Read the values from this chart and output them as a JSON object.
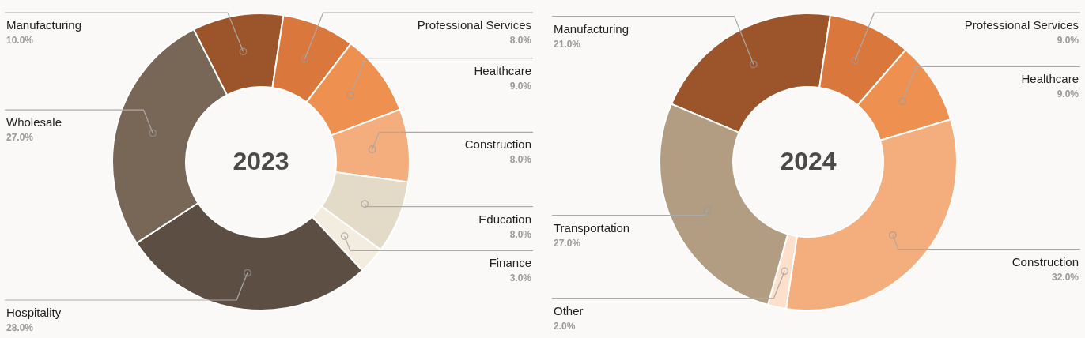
{
  "chart_data": [
    {
      "type": "donut",
      "title": "2023",
      "categories": [
        "Manufacturing",
        "Professional Services",
        "Healthcare",
        "Construction",
        "Education",
        "Finance",
        "Hospitality",
        "Wholesale"
      ],
      "values": [
        10.0,
        8.0,
        9.0,
        8.0,
        8.0,
        3.0,
        28.0,
        27.0
      ],
      "value_labels": [
        "10.0%",
        "8.0%",
        "9.0%",
        "8.0%",
        "8.0%",
        "3.0%",
        "28.0%",
        "27.0%"
      ],
      "colors": [
        "#9c552b",
        "#d9773d",
        "#ee9150",
        "#f4ad7c",
        "#e3dac8",
        "#f3ede0",
        "#5c4e42",
        "#786656"
      ],
      "legend": false
    },
    {
      "type": "donut",
      "title": "2024",
      "categories": [
        "Manufacturing",
        "Professional Services",
        "Healthcare",
        "Construction",
        "Other",
        "Transportation"
      ],
      "values": [
        21.0,
        9.0,
        9.0,
        32.0,
        2.0,
        27.0
      ],
      "value_labels": [
        "21.0%",
        "9.0%",
        "9.0%",
        "32.0%",
        "2.0%",
        "27.0%"
      ],
      "colors": [
        "#9c552b",
        "#d9773d",
        "#ee9150",
        "#f4ad7c",
        "#fde0cc",
        "#b29c82"
      ],
      "legend": false
    }
  ]
}
